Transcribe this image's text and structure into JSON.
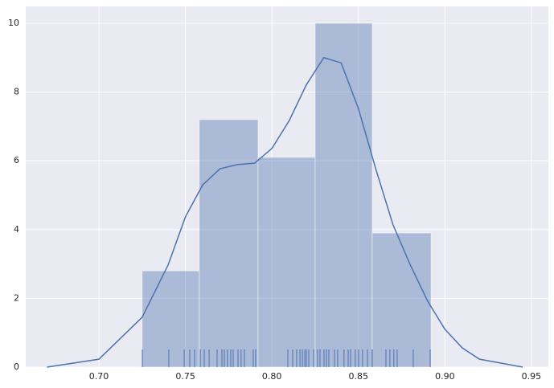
{
  "chart_data": {
    "type": "histogram",
    "bins": [
      0.725,
      0.758,
      0.792,
      0.825,
      0.858,
      0.892
    ],
    "values": [
      2.8,
      7.2,
      6.1,
      10.0,
      3.9
    ],
    "color": "#4c72b0",
    "kde": {
      "x": [
        0.67,
        0.7,
        0.725,
        0.74,
        0.75,
        0.76,
        0.77,
        0.78,
        0.79,
        0.8,
        0.81,
        0.82,
        0.83,
        0.84,
        0.85,
        0.86,
        0.87,
        0.88,
        0.89,
        0.9,
        0.91,
        0.92,
        0.945
      ],
      "y": [
        0,
        0.23,
        1.45,
        2.97,
        4.37,
        5.3,
        5.77,
        5.89,
        5.93,
        6.36,
        7.17,
        8.22,
        9.0,
        8.85,
        7.52,
        5.77,
        4.14,
        2.97,
        1.92,
        1.1,
        0.56,
        0.23,
        0
      ]
    },
    "rug": [
      0.7251,
      0.7404,
      0.7493,
      0.7525,
      0.7553,
      0.7586,
      0.7609,
      0.7637,
      0.7683,
      0.7711,
      0.7725,
      0.7743,
      0.7762,
      0.7776,
      0.7804,
      0.7822,
      0.7841,
      0.7892,
      0.7906,
      0.8092,
      0.812,
      0.8143,
      0.8162,
      0.8176,
      0.819,
      0.8199,
      0.8213,
      0.8241,
      0.8264,
      0.8278,
      0.8301,
      0.8315,
      0.8329,
      0.8362,
      0.838,
      0.8417,
      0.8441,
      0.8455,
      0.8482,
      0.8501,
      0.8524,
      0.8552,
      0.858,
      0.8659,
      0.8682,
      0.8705,
      0.8724,
      0.8817,
      0.8915
    ],
    "xlim": [
      0.6577,
      0.9598
    ],
    "ylim": [
      0,
      10.49
    ],
    "xticks": [
      {
        "value": 0.7,
        "label": "0.70"
      },
      {
        "value": 0.75,
        "label": "0.75"
      },
      {
        "value": 0.8,
        "label": "0.80"
      },
      {
        "value": 0.85,
        "label": "0.85"
      },
      {
        "value": 0.9,
        "label": "0.90"
      },
      {
        "value": 0.95,
        "label": "0.95"
      }
    ],
    "yticks": [
      0,
      2,
      4,
      6,
      8,
      10
    ],
    "grid": true
  }
}
